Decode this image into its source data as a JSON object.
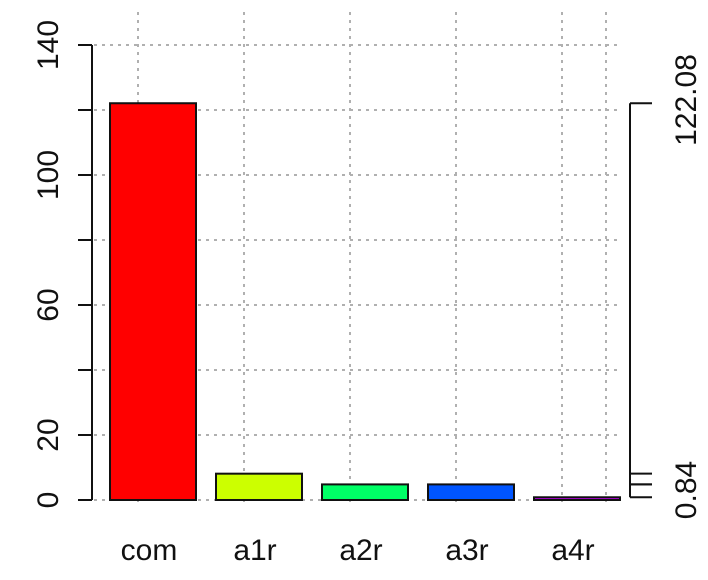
{
  "chart_data": {
    "type": "bar",
    "title": "",
    "xlabel": "",
    "ylabel": "",
    "categories": [
      "com",
      "a1r",
      "a2r",
      "a3r",
      "a4r"
    ],
    "values": [
      122.08,
      8.1,
      4.8,
      4.8,
      0.84
    ],
    "colors": [
      "#ff0000",
      "#ccff00",
      "#00ff66",
      "#0055ff",
      "#cc00ff"
    ],
    "ylim": [
      0,
      140
    ],
    "y_ticks": [
      0,
      20,
      60,
      100,
      140
    ],
    "grid": true,
    "right_axis": {
      "labels": [
        {
          "value": 122.08,
          "text": "122.08"
        },
        {
          "value": 0.84,
          "text": "0.84"
        }
      ]
    }
  }
}
